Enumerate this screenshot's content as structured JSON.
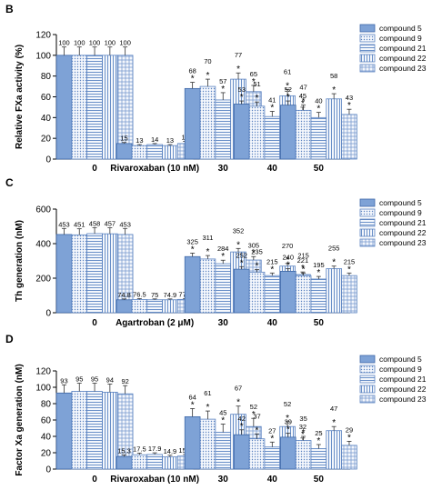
{
  "series_styles": [
    {
      "fill": "#7ea2d6",
      "stroke": "#3e68a8",
      "pattern": "solid"
    },
    {
      "fill": "#eaf0fa",
      "stroke": "#5a82c0",
      "pattern": "dots"
    },
    {
      "fill": "#eaf0fa",
      "stroke": "#5a82c0",
      "pattern": "hlines"
    },
    {
      "fill": "#eaf0fa",
      "stroke": "#5a82c0",
      "pattern": "vlines"
    },
    {
      "fill": "#eaf0fa",
      "stroke": "#5a82c0",
      "pattern": "grid"
    }
  ],
  "chart_data": [
    {
      "panel_label": "B",
      "type": "bar",
      "ylabel": "Relative FXa activity (%)",
      "ylim": [
        0,
        120
      ],
      "yticks": [
        "0",
        "20",
        "40",
        "60",
        "80",
        "100",
        "120"
      ],
      "ytick_values": [
        0,
        20,
        40,
        60,
        80,
        100,
        120
      ],
      "legend_position": "top-right",
      "categories": [
        "0",
        "Rivaroxaban (10 nM)",
        "30",
        "40",
        "50"
      ],
      "series": [
        {
          "name": "compound 5",
          "values": [
            100,
            15,
            68,
            53,
            52
          ],
          "errors": [
            8,
            1,
            6,
            3,
            4
          ]
        },
        {
          "name": "compound 9",
          "values": [
            100,
            13,
            70,
            51,
            47
          ],
          "errors": [
            8,
            1,
            7,
            4,
            5
          ]
        },
        {
          "name": "compound 21",
          "values": [
            100,
            14,
            57,
            41,
            40
          ],
          "errors": [
            8,
            1,
            7,
            5,
            5
          ]
        },
        {
          "name": "compound 22",
          "values": [
            100,
            13,
            77,
            61,
            58
          ],
          "errors": [
            8,
            1,
            6,
            6,
            5
          ]
        },
        {
          "name": "compound 23",
          "values": [
            100,
            15,
            65,
            45,
            43
          ],
          "errors": [
            8,
            2,
            6,
            5,
            5
          ]
        }
      ],
      "value_labels": [
        [
          "100",
          "15",
          "68",
          "53",
          "52"
        ],
        [
          "100",
          "13",
          "70",
          "51",
          "47"
        ],
        [
          "100",
          "14",
          "57",
          "41",
          "40"
        ],
        [
          "100",
          "13",
          "77",
          "61",
          "58"
        ],
        [
          "100",
          "15",
          "65",
          "45",
          "43"
        ]
      ],
      "significance": [
        [
          false,
          false,
          true,
          true,
          true
        ],
        [
          false,
          false,
          true,
          true,
          true
        ],
        [
          false,
          false,
          true,
          true,
          true
        ],
        [
          false,
          false,
          true,
          true,
          true
        ],
        [
          false,
          false,
          true,
          true,
          true
        ]
      ],
      "star": "*"
    },
    {
      "panel_label": "C",
      "type": "bar",
      "ylabel": "Th generation (nM)",
      "ylim": [
        0,
        600
      ],
      "yticks": [
        "0",
        "200",
        "400",
        "600"
      ],
      "ytick_values": [
        0,
        200,
        400,
        600
      ],
      "legend_position": "top-right",
      "categories": [
        "0",
        "Agartroban (2 μM)",
        "30",
        "40",
        "50"
      ],
      "series": [
        {
          "name": "compound 5",
          "values": [
            453,
            74.8,
            325,
            252,
            240
          ],
          "errors": [
            35,
            5,
            20,
            15,
            15
          ]
        },
        {
          "name": "compound 9",
          "values": [
            451,
            76.5,
            311,
            235,
            215
          ],
          "errors": [
            35,
            5,
            20,
            15,
            15
          ]
        },
        {
          "name": "compound 21",
          "values": [
            458,
            75,
            284,
            215,
            195
          ],
          "errors": [
            35,
            5,
            20,
            15,
            15
          ]
        },
        {
          "name": "compound 22",
          "values": [
            457,
            74.9,
            352,
            270,
            255
          ],
          "errors": [
            35,
            5,
            20,
            15,
            15
          ]
        },
        {
          "name": "compound 23",
          "values": [
            453,
            77.2,
            305,
            221,
            215
          ],
          "errors": [
            35,
            5,
            20,
            15,
            15
          ]
        }
      ],
      "value_labels": [
        [
          "453",
          "74.8",
          "325",
          "252",
          "240"
        ],
        [
          "451",
          "76.5",
          "311",
          "235",
          "215"
        ],
        [
          "458",
          "75",
          "284",
          "215",
          "195"
        ],
        [
          "457",
          "74.9",
          "352",
          "270",
          "255"
        ],
        [
          "453",
          "77.2",
          "305",
          "221",
          "215"
        ]
      ],
      "significance": [
        [
          false,
          false,
          true,
          true,
          true
        ],
        [
          false,
          false,
          true,
          true,
          true
        ],
        [
          false,
          false,
          true,
          true,
          true
        ],
        [
          false,
          false,
          true,
          true,
          true
        ],
        [
          false,
          false,
          true,
          true,
          true
        ]
      ],
      "star": "*"
    },
    {
      "panel_label": "D",
      "type": "bar",
      "ylabel": "Factor Xa generation (nM)",
      "ylim": [
        0,
        120
      ],
      "yticks": [
        "0",
        "20",
        "40",
        "60",
        "80",
        "100",
        "120"
      ],
      "ytick_values": [
        0,
        20,
        40,
        60,
        80,
        100,
        120
      ],
      "legend_position": "top-right",
      "categories": [
        "0",
        "Rivaroxaban (10 nM)",
        "30",
        "40",
        "50"
      ],
      "series": [
        {
          "name": "compound 5",
          "values": [
            93,
            15.3,
            64,
            42,
            39
          ],
          "errors": [
            10,
            2,
            10,
            6,
            5
          ]
        },
        {
          "name": "compound 9",
          "values": [
            95,
            17.5,
            61,
            37,
            35
          ],
          "errors": [
            10,
            2,
            10,
            6,
            5
          ]
        },
        {
          "name": "compound 21",
          "values": [
            95,
            17.9,
            45,
            27,
            25
          ],
          "errors": [
            10,
            2,
            10,
            6,
            5
          ]
        },
        {
          "name": "compound 22",
          "values": [
            94,
            14.9,
            67,
            52,
            47
          ],
          "errors": [
            10,
            2,
            10,
            6,
            5
          ]
        },
        {
          "name": "compound 23",
          "values": [
            92,
            15.9,
            52,
            32,
            29
          ],
          "errors": [
            10,
            2,
            10,
            6,
            5
          ]
        }
      ],
      "value_labels": [
        [
          "93",
          "15.3",
          "64",
          "42",
          "39"
        ],
        [
          "95",
          "17.5",
          "61",
          "37",
          "35"
        ],
        [
          "95",
          "17.9",
          "45",
          "27",
          "25"
        ],
        [
          "94",
          "14.9",
          "67",
          "52",
          "47"
        ],
        [
          "92",
          "15.9",
          "52",
          "32",
          "29"
        ]
      ],
      "significance": [
        [
          false,
          false,
          true,
          true,
          true
        ],
        [
          false,
          false,
          true,
          true,
          true
        ],
        [
          false,
          false,
          true,
          true,
          true
        ],
        [
          false,
          false,
          true,
          true,
          true
        ],
        [
          false,
          false,
          true,
          true,
          true
        ]
      ],
      "star": "*"
    }
  ]
}
